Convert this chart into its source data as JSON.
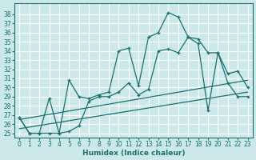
{
  "xlabel": "Humidex (Indice chaleur)",
  "bg_color": "#cce8e8",
  "grid_color": "#ffffff",
  "line_color": "#1a7070",
  "xlim": [
    -0.5,
    23.5
  ],
  "ylim": [
    24.5,
    39.2
  ],
  "xticks": [
    0,
    1,
    2,
    3,
    4,
    5,
    6,
    7,
    8,
    9,
    10,
    11,
    12,
    13,
    14,
    15,
    16,
    17,
    18,
    19,
    20,
    21,
    22,
    23
  ],
  "yticks": [
    25,
    26,
    27,
    28,
    29,
    30,
    31,
    32,
    33,
    34,
    35,
    36,
    37,
    38
  ],
  "curve1_x": [
    0,
    1,
    2,
    3,
    4,
    5,
    6,
    7,
    8,
    9,
    10,
    11,
    12,
    13,
    14,
    15,
    16,
    17,
    18,
    19,
    20,
    21,
    22,
    23
  ],
  "curve1_y": [
    26.7,
    25.0,
    25.0,
    28.8,
    25.0,
    30.8,
    29.0,
    28.8,
    29.2,
    29.5,
    34.0,
    34.3,
    30.2,
    35.5,
    36.0,
    38.2,
    37.7,
    35.5,
    35.3,
    33.8,
    33.8,
    31.5,
    31.8,
    30.0
  ],
  "curve2_x": [
    0,
    1,
    2,
    3,
    4,
    5,
    6,
    7,
    8,
    9,
    10,
    11,
    12,
    13,
    14,
    15,
    16,
    17,
    18,
    19,
    20,
    21,
    22,
    23
  ],
  "curve2_y": [
    26.7,
    25.0,
    25.0,
    25.0,
    25.0,
    25.2,
    25.8,
    28.5,
    29.0,
    29.0,
    29.5,
    30.5,
    29.2,
    29.8,
    34.0,
    34.2,
    33.8,
    35.5,
    34.8,
    27.5,
    33.8,
    30.5,
    29.0,
    29.0
  ],
  "line1_x": [
    0,
    23
  ],
  "line1_y": [
    26.5,
    30.8
  ],
  "line2_x": [
    0,
    23
  ],
  "line2_y": [
    25.5,
    29.5
  ]
}
